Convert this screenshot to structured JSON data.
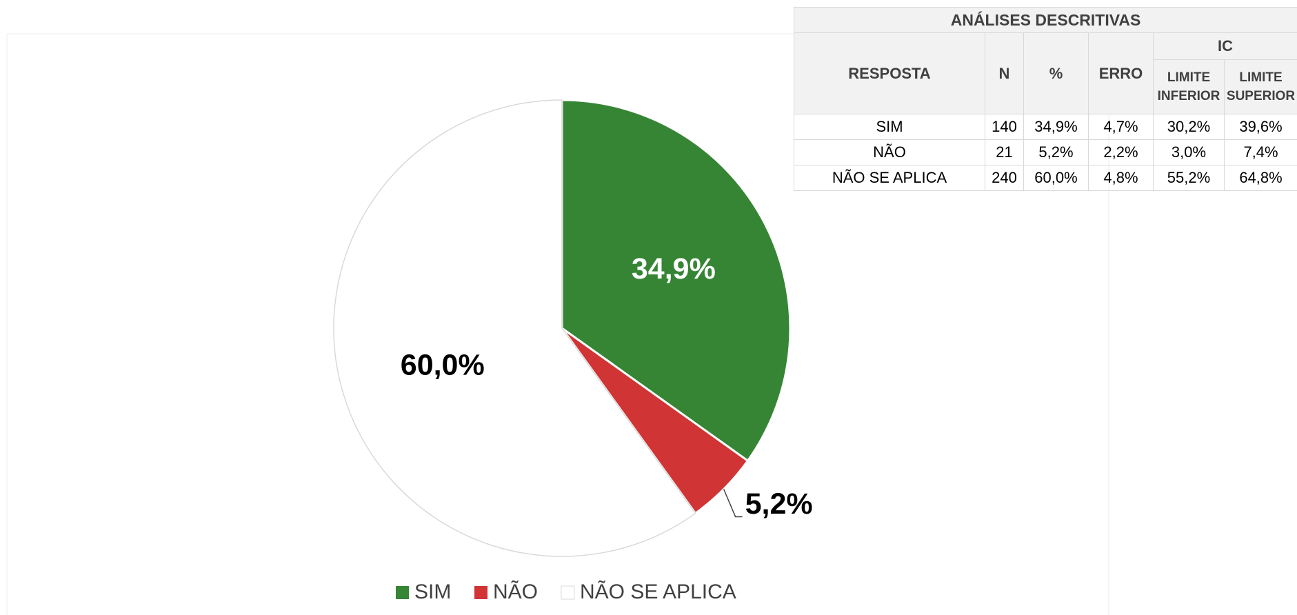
{
  "chart_data": {
    "type": "pie",
    "categories": [
      "SIM",
      "NÃO",
      "NÃO SE APLICA"
    ],
    "values": [
      34.9,
      5.2,
      60.0
    ],
    "value_labels": [
      "34,9%",
      "5,2%",
      "60,0%"
    ],
    "colors": [
      "#368535",
      "#d03434",
      "#ffffff"
    ],
    "legend": "bottom"
  },
  "table": {
    "title": "ANÁLISES DESCRITIVAS",
    "headers": [
      "RESPOSTA",
      "N",
      "%",
      "ERRO",
      "IC",
      "LIMITE INFERIOR",
      "LIMITE SUPERIOR"
    ],
    "rows": [
      [
        "SIM",
        "140",
        "34,9%",
        "4,7%",
        "30,2%",
        "39,6%"
      ],
      [
        "NÃO",
        "21",
        "5,2%",
        "2,2%",
        "3,0%",
        "7,4%"
      ],
      [
        "NÃO SE APLICA",
        "240",
        "60,0%",
        "4,8%",
        "55,2%",
        "64,8%"
      ]
    ]
  }
}
